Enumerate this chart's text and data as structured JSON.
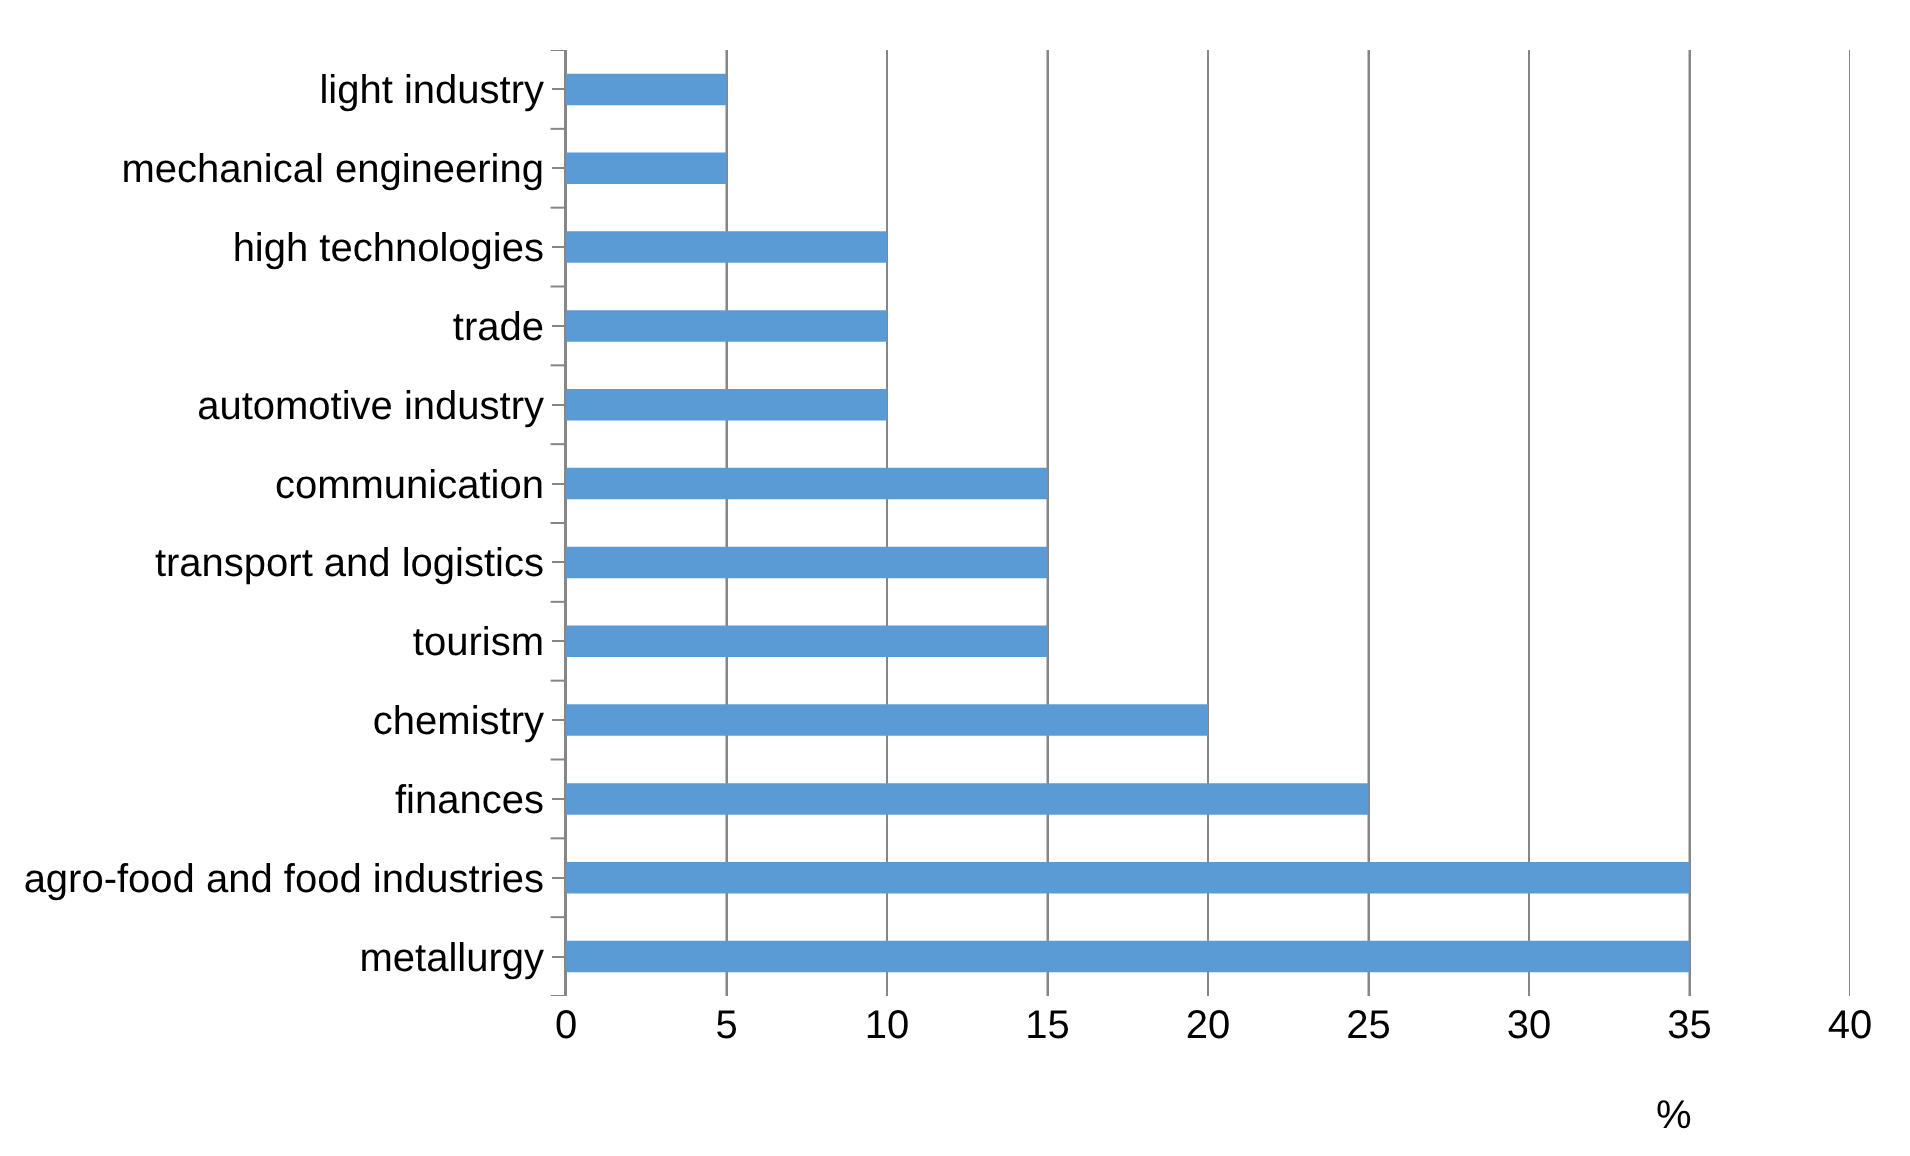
{
  "chart_data": {
    "type": "bar",
    "orientation": "horizontal",
    "xlabel": "%",
    "categories": [
      "light industry",
      "mechanical engineering",
      "high technologies",
      "trade",
      "automotive industry",
      "communication",
      "transport and logistics",
      "tourism",
      "chemistry",
      "finances",
      "agro-food and food industries",
      "metallurgy"
    ],
    "values": [
      5,
      5,
      10,
      10,
      10,
      15,
      15,
      15,
      20,
      25,
      35,
      35
    ],
    "color": "#5b9bd5",
    "xlim": [
      0,
      40
    ],
    "xticks": [
      0,
      5,
      10,
      15,
      20,
      25,
      30,
      35,
      40
    ],
    "grid": "x"
  }
}
